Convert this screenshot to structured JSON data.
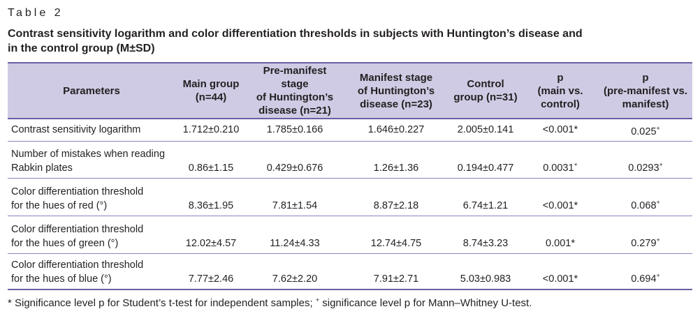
{
  "table_label": "Table 2",
  "caption_line1": "Contrast sensitivity logarithm and color differentiation thresholds in subjects with Huntington’s disease and",
  "caption_line2": "in the control group (M±SD)",
  "headers": {
    "parameters": "Parameters",
    "main_l1": "Main group",
    "main_l2": "(n=44)",
    "pre_l1": "Pre-manifest stage",
    "pre_l2": "of Huntington’s",
    "pre_l3": "disease (n=21)",
    "man_l1": "Manifest stage",
    "man_l2": "of Huntington’s",
    "man_l3": "disease (n=23)",
    "ctrl_l1": "Control",
    "ctrl_l2": "group (n=31)",
    "p1_l1": "p",
    "p1_l2": "(main vs.",
    "p1_l3": "control)",
    "p2_l1": "p",
    "p2_l2": "(pre-manifest vs.",
    "p2_l3": "manifest)"
  },
  "rows": [
    {
      "param_l1": "Contrast sensitivity logarithm",
      "param_l2": "",
      "main": "1.712±0.210",
      "pre": "1.785±0.166",
      "manifest": "1.646±0.227",
      "control": "2.005±0.141",
      "p_main_control": "<0.001*",
      "p_pre_manifest": "0.025",
      "p_pre_manifest_mark": "+"
    },
    {
      "param_l1": "Number of mistakes when reading",
      "param_l2": "Rabkin plates",
      "main": "0.86±1.15",
      "pre": "0.429±0.676",
      "manifest": "1.26±1.36",
      "control": "0.194±0.477",
      "p_main_control": "0.0031",
      "p_main_control_mark": "+",
      "p_pre_manifest": "0.0293",
      "p_pre_manifest_mark": "+"
    },
    {
      "param_l1": "Color differentiation threshold",
      "param_l2": "for the hues of red (°)",
      "main": "8.36±1.95",
      "pre": "7.81±1.54",
      "manifest": "8.87±2.18",
      "control": "6.74±1.21",
      "p_main_control": "<0.001*",
      "p_pre_manifest": "0.068",
      "p_pre_manifest_mark": "+"
    },
    {
      "param_l1": "Color differentiation threshold",
      "param_l2": "for the hues of green (°)",
      "main": "12.02±4.57",
      "pre": "11.24±4.33",
      "manifest": "12.74±4.75",
      "control": "8.74±3.23",
      "p_main_control": "0.001*",
      "p_pre_manifest": "0.279",
      "p_pre_manifest_mark": "+"
    },
    {
      "param_l1": "Color differentiation threshold",
      "param_l2": "for the hues of blue (°)",
      "main": "7.77±2.46",
      "pre": "7.62±2.20",
      "manifest": "7.91±2.71",
      "control": "5.03±0.983",
      "p_main_control": "<0.001*",
      "p_pre_manifest": "0.694",
      "p_pre_manifest_mark": "+"
    }
  ],
  "footnote": {
    "part1": "* Significance level p for Student’s t-test for independent samples; ",
    "mark": "+",
    "part2": " significance level p for Mann–Whitney U-test."
  },
  "colors": {
    "header_bg": "#cfcbe4",
    "rule": "#6a5fa3",
    "text": "#231f20"
  }
}
